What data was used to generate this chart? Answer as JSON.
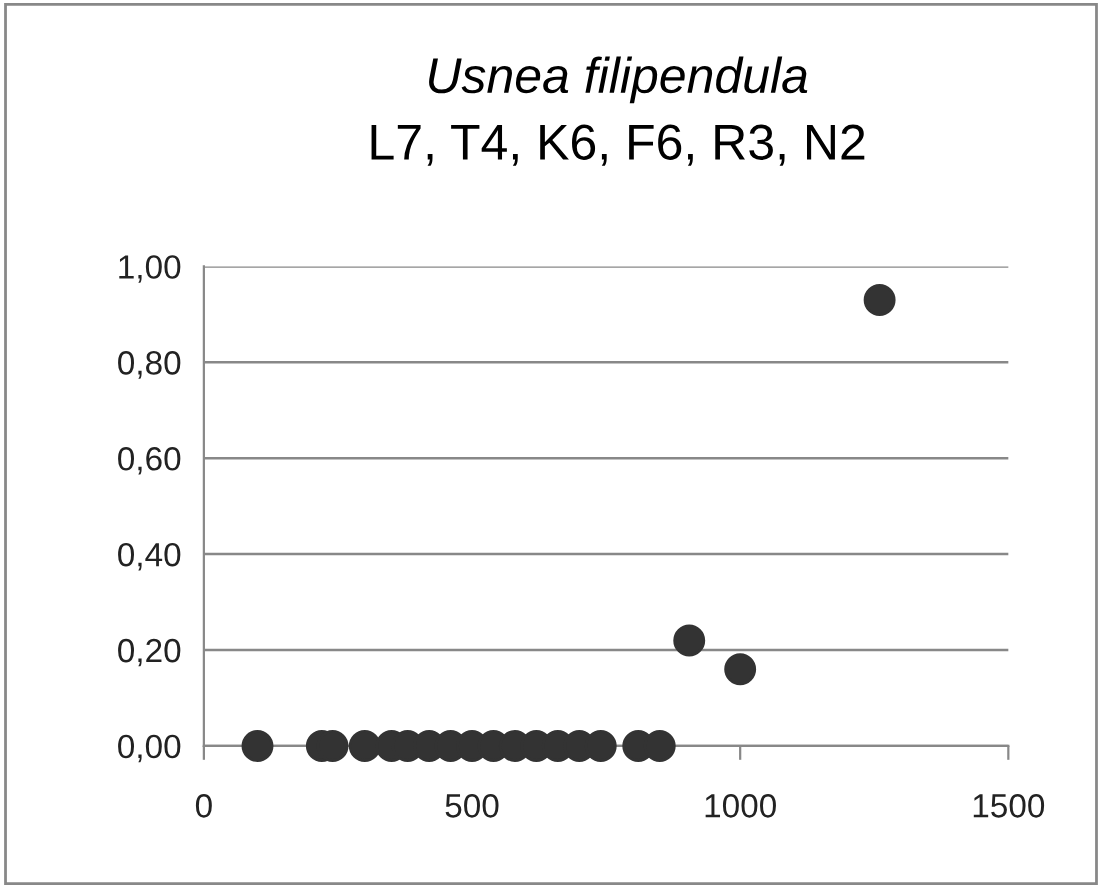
{
  "chart_data": {
    "type": "scatter",
    "title": "Usnea filipendula",
    "subtitle": "L7, T4, K6, F6, R3, N2",
    "x": [
      100,
      220,
      240,
      300,
      350,
      380,
      420,
      460,
      500,
      540,
      580,
      620,
      660,
      700,
      740,
      810,
      850,
      905,
      1000,
      1260
    ],
    "series": [
      {
        "color": "#333333",
        "values": [
          0,
          0,
          0,
          0,
          0,
          0,
          0,
          0,
          0,
          0,
          0,
          0,
          0,
          0,
          0,
          0,
          0,
          0.22,
          0.16,
          0.93
        ]
      }
    ],
    "marker": "circle",
    "xlim": [
      0,
      1500
    ],
    "xticks": [
      0,
      500,
      1000,
      1500
    ],
    "ylim": [
      0,
      1.0
    ],
    "yticks": [
      {
        "value": 0,
        "label": "0,00"
      },
      {
        "value": 0.2,
        "label": "0,20"
      },
      {
        "value": 0.4,
        "label": "0,40"
      },
      {
        "value": 0.6,
        "label": "0,60"
      },
      {
        "value": 0.8,
        "label": "0,80"
      },
      {
        "value": 1.0,
        "label": "1,00"
      }
    ],
    "grid": "y",
    "legend": false
  }
}
